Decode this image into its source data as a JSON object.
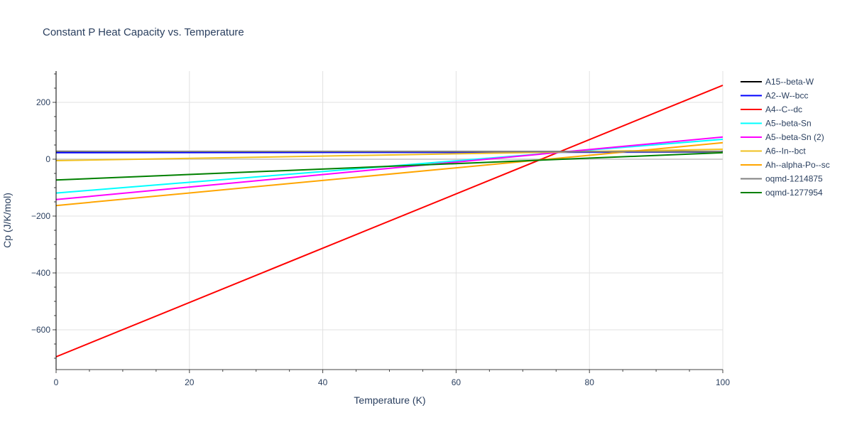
{
  "chart_data": {
    "type": "line",
    "title": "Constant P Heat Capacity vs. Temperature",
    "xlabel": "Temperature (K)",
    "ylabel": "Cp (J/K/mol)",
    "xlim": [
      0,
      100
    ],
    "ylim": [
      -740,
      310
    ],
    "xticks": [
      0,
      20,
      40,
      60,
      80,
      100
    ],
    "yticks": [
      -600,
      -400,
      -200,
      0,
      200
    ],
    "ytick_labels": [
      "−600",
      "−400",
      "−200",
      "0",
      "200"
    ],
    "grid": true,
    "legend_position": "right",
    "series": [
      {
        "name": "A15--beta-W",
        "color": "#000000",
        "x": [
          0,
          100
        ],
        "y": [
          27,
          27
        ]
      },
      {
        "name": "A2--W--bcc",
        "color": "#0000ff",
        "x": [
          0,
          100
        ],
        "y": [
          23,
          25
        ]
      },
      {
        "name": "A4--C--dc",
        "color": "#ff0000",
        "x": [
          0,
          100
        ],
        "y": [
          -695,
          260
        ]
      },
      {
        "name": "A5--beta-Sn",
        "color": "#00ffff",
        "x": [
          0,
          100
        ],
        "y": [
          -119,
          70
        ]
      },
      {
        "name": "A5--beta-Sn (2)",
        "color": "#ff00ff",
        "x": [
          0,
          100
        ],
        "y": [
          -142,
          78
        ]
      },
      {
        "name": "A6--In--bct",
        "color": "#f0c020",
        "x": [
          0,
          100
        ],
        "y": [
          -5,
          35
        ]
      },
      {
        "name": "Ah--alpha-Po--sc",
        "color": "#ffa500",
        "x": [
          0,
          100
        ],
        "y": [
          -163,
          58
        ]
      },
      {
        "name": "oqmd-1214875",
        "color": "#808080",
        "x": [
          0,
          100
        ],
        "y": [
          28,
          26
        ]
      },
      {
        "name": "oqmd-1277954",
        "color": "#008000",
        "x": [
          0,
          100
        ],
        "y": [
          -73,
          23
        ]
      }
    ]
  }
}
